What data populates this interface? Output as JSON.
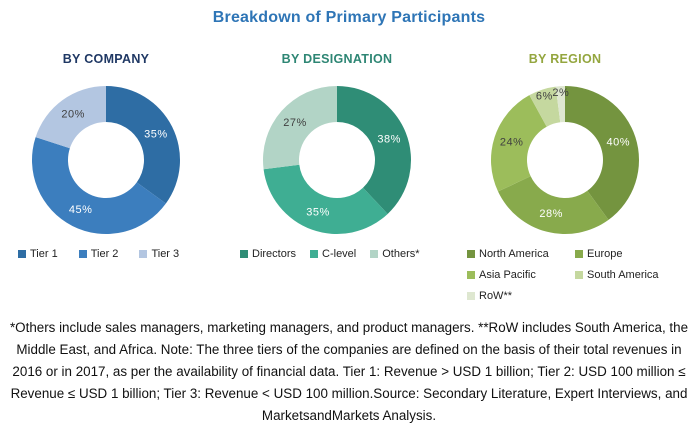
{
  "title": "Breakdown of Primary Participants",
  "title_color": "#2E75B6",
  "chart_data": [
    {
      "type": "pie",
      "subtype": "donut",
      "title": "BY COMPANY",
      "title_color": "#1F3864",
      "categories": [
        "Tier 1",
        "Tier 2",
        "Tier 3"
      ],
      "values": [
        35,
        45,
        20
      ],
      "unit": "%",
      "colors": [
        "#2E6DA4",
        "#3C7EBE",
        "#B3C6E1"
      ],
      "value_label_colors": [
        "#FFFFFF",
        "#FFFFFF",
        "#404040"
      ],
      "legend_position": "bottom",
      "legend_layout": "row"
    },
    {
      "type": "pie",
      "subtype": "donut",
      "title": "BY DESIGNATION",
      "title_color": "#2E8674",
      "categories": [
        "Directors",
        "C-level",
        "Others*"
      ],
      "values": [
        38,
        35,
        27
      ],
      "unit": "%",
      "colors": [
        "#2F8D76",
        "#3FAE93",
        "#B2D4C6"
      ],
      "value_label_colors": [
        "#FFFFFF",
        "#FFFFFF",
        "#404040"
      ],
      "legend_position": "bottom",
      "legend_layout": "row"
    },
    {
      "type": "pie",
      "subtype": "donut",
      "title": "BY REGION",
      "title_color": "#94A63F",
      "categories": [
        "North America",
        "Europe",
        "Asia Pacific",
        "South America",
        "RoW**"
      ],
      "values": [
        40,
        28,
        24,
        6,
        2
      ],
      "unit": "%",
      "colors": [
        "#74943F",
        "#88AA4C",
        "#9CBD5B",
        "#C5D89F",
        "#DEE7D0"
      ],
      "value_label_colors": [
        "#FFFFFF",
        "#FFFFFF",
        "#404040",
        "#404040",
        "#404040"
      ],
      "legend_position": "bottom",
      "legend_layout": "grid-2col"
    }
  ],
  "footnote": "*Others include sales managers, marketing managers, and product managers.  **RoW includes South America, the Middle East, and Africa.  Note: The three tiers of the companies are defined on the basis of their total revenues in 2016 or in 2017, as per the availability of financial data. Tier 1: Revenue > USD 1 billion; Tier 2: USD 100 million ≤ Revenue ≤ USD 1 billion; Tier 3: Revenue < USD 100 million.Source: Secondary Literature, Expert Interviews, and MarketsandMarkets Analysis."
}
